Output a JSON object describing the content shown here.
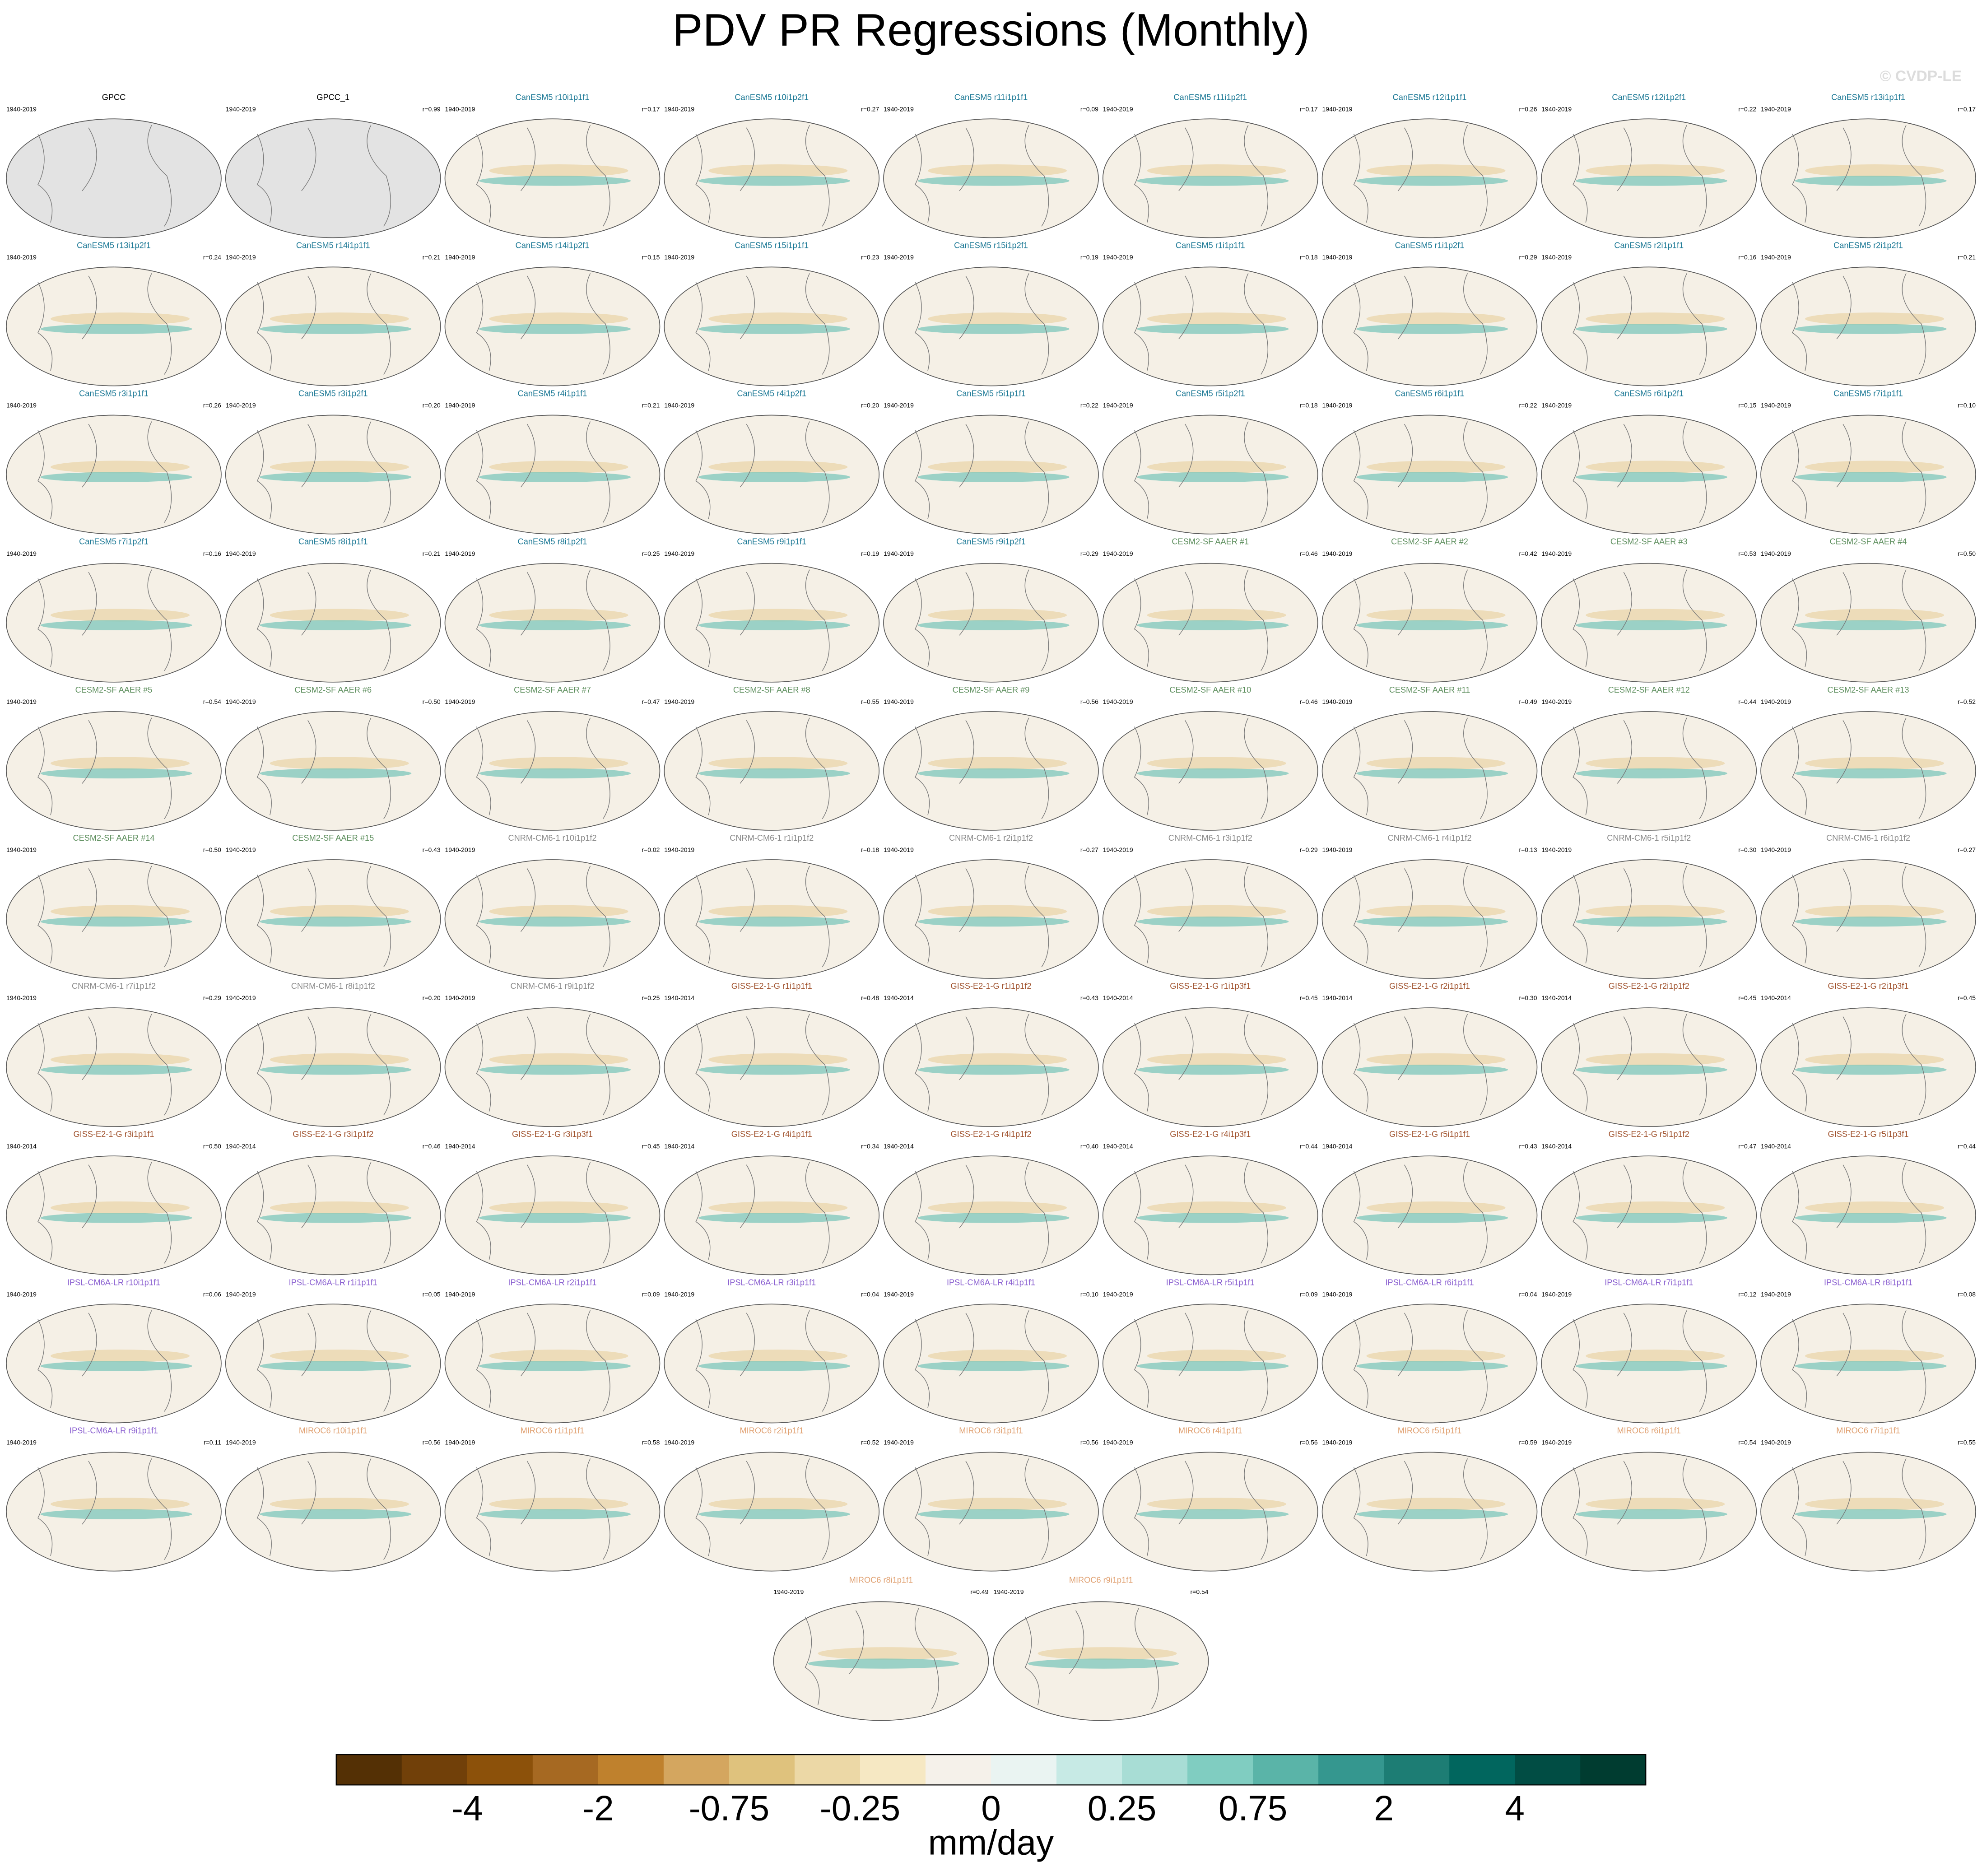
{
  "title": "PDV PR Regressions (Monthly)",
  "watermark": "© CVDP-LE",
  "groups": [
    {
      "color": "#000000",
      "fill": "#e3e3e3",
      "panels": [
        {
          "title": "GPCC",
          "period": "1940-2019"
        },
        {
          "title": "GPCC_1",
          "period": "1940-2019",
          "r": "r=0.99"
        }
      ]
    },
    {
      "color": "#1b7895",
      "fill": "#f5f0e6",
      "panels": [
        {
          "title": "CanESM5 r10i1p1f1",
          "period": "1940-2019",
          "r": "r=0.17"
        },
        {
          "title": "CanESM5 r10i1p2f1",
          "period": "1940-2019",
          "r": "r=0.27"
        },
        {
          "title": "CanESM5 r11i1p1f1",
          "period": "1940-2019",
          "r": "r=0.09"
        },
        {
          "title": "CanESM5 r11i1p2f1",
          "period": "1940-2019",
          "r": "r=0.17"
        },
        {
          "title": "CanESM5 r12i1p1f1",
          "period": "1940-2019",
          "r": "r=0.26"
        },
        {
          "title": "CanESM5 r12i1p2f1",
          "period": "1940-2019",
          "r": "r=0.22"
        },
        {
          "title": "CanESM5 r13i1p1f1",
          "period": "1940-2019",
          "r": "r=0.17"
        },
        {
          "title": "CanESM5 r13i1p2f1",
          "period": "1940-2019",
          "r": "r=0.24"
        },
        {
          "title": "CanESM5 r14i1p1f1",
          "period": "1940-2019",
          "r": "r=0.21"
        },
        {
          "title": "CanESM5 r14i1p2f1",
          "period": "1940-2019",
          "r": "r=0.15"
        },
        {
          "title": "CanESM5 r15i1p1f1",
          "period": "1940-2019",
          "r": "r=0.23"
        },
        {
          "title": "CanESM5 r15i1p2f1",
          "period": "1940-2019",
          "r": "r=0.19"
        },
        {
          "title": "CanESM5 r1i1p1f1",
          "period": "1940-2019",
          "r": "r=0.18"
        },
        {
          "title": "CanESM5 r1i1p2f1",
          "period": "1940-2019",
          "r": "r=0.29"
        },
        {
          "title": "CanESM5 r2i1p1f1",
          "period": "1940-2019",
          "r": "r=0.16"
        },
        {
          "title": "CanESM5 r2i1p2f1",
          "period": "1940-2019",
          "r": "r=0.21"
        },
        {
          "title": "CanESM5 r3i1p1f1",
          "period": "1940-2019",
          "r": "r=0.26"
        },
        {
          "title": "CanESM5 r3i1p2f1",
          "period": "1940-2019",
          "r": "r=0.20"
        },
        {
          "title": "CanESM5 r4i1p1f1",
          "period": "1940-2019",
          "r": "r=0.21"
        },
        {
          "title": "CanESM5 r4i1p2f1",
          "period": "1940-2019",
          "r": "r=0.20"
        },
        {
          "title": "CanESM5 r5i1p1f1",
          "period": "1940-2019",
          "r": "r=0.22"
        },
        {
          "title": "CanESM5 r5i1p2f1",
          "period": "1940-2019",
          "r": "r=0.18"
        },
        {
          "title": "CanESM5 r6i1p1f1",
          "period": "1940-2019",
          "r": "r=0.22"
        },
        {
          "title": "CanESM5 r6i1p2f1",
          "period": "1940-2019",
          "r": "r=0.15"
        },
        {
          "title": "CanESM5 r7i1p1f1",
          "period": "1940-2019",
          "r": "r=0.10"
        },
        {
          "title": "CanESM5 r7i1p2f1",
          "period": "1940-2019",
          "r": "r=0.16"
        },
        {
          "title": "CanESM5 r8i1p1f1",
          "period": "1940-2019",
          "r": "r=0.21"
        },
        {
          "title": "CanESM5 r8i1p2f1",
          "period": "1940-2019",
          "r": "r=0.25"
        },
        {
          "title": "CanESM5 r9i1p1f1",
          "period": "1940-2019",
          "r": "r=0.19"
        },
        {
          "title": "CanESM5 r9i1p2f1",
          "period": "1940-2019",
          "r": "r=0.29"
        }
      ]
    },
    {
      "color": "#5e8f5e",
      "fill": "#f5f0e6",
      "panels": [
        {
          "title": "CESM2-SF AAER #1",
          "period": "1940-2019",
          "r": "r=0.46"
        },
        {
          "title": "CESM2-SF AAER #2",
          "period": "1940-2019",
          "r": "r=0.42"
        },
        {
          "title": "CESM2-SF AAER #3",
          "period": "1940-2019",
          "r": "r=0.53"
        },
        {
          "title": "CESM2-SF AAER #4",
          "period": "1940-2019",
          "r": "r=0.50"
        },
        {
          "title": "CESM2-SF AAER #5",
          "period": "1940-2019",
          "r": "r=0.54"
        },
        {
          "title": "CESM2-SF AAER #6",
          "period": "1940-2019",
          "r": "r=0.50"
        },
        {
          "title": "CESM2-SF AAER #7",
          "period": "1940-2019",
          "r": "r=0.47"
        },
        {
          "title": "CESM2-SF AAER #8",
          "period": "1940-2019",
          "r": "r=0.55"
        },
        {
          "title": "CESM2-SF AAER #9",
          "period": "1940-2019",
          "r": "r=0.56"
        },
        {
          "title": "CESM2-SF AAER #10",
          "period": "1940-2019",
          "r": "r=0.46"
        },
        {
          "title": "CESM2-SF AAER #11",
          "period": "1940-2019",
          "r": "r=0.49"
        },
        {
          "title": "CESM2-SF AAER #12",
          "period": "1940-2019",
          "r": "r=0.44"
        },
        {
          "title": "CESM2-SF AAER #13",
          "period": "1940-2019",
          "r": "r=0.52"
        },
        {
          "title": "CESM2-SF AAER #14",
          "period": "1940-2019",
          "r": "r=0.50"
        },
        {
          "title": "CESM2-SF AAER #15",
          "period": "1940-2019",
          "r": "r=0.43"
        }
      ]
    },
    {
      "color": "#8a8a8a",
      "fill": "#f5f0e6",
      "panels": [
        {
          "title": "CNRM-CM6-1 r10i1p1f2",
          "period": "1940-2019",
          "r": "r=0.02"
        },
        {
          "title": "CNRM-CM6-1 r1i1p1f2",
          "period": "1940-2019",
          "r": "r=0.18"
        },
        {
          "title": "CNRM-CM6-1 r2i1p1f2",
          "period": "1940-2019",
          "r": "r=0.27"
        },
        {
          "title": "CNRM-CM6-1 r3i1p1f2",
          "period": "1940-2019",
          "r": "r=0.29"
        },
        {
          "title": "CNRM-CM6-1 r4i1p1f2",
          "period": "1940-2019",
          "r": "r=0.13"
        },
        {
          "title": "CNRM-CM6-1 r5i1p1f2",
          "period": "1940-2019",
          "r": "r=0.30"
        },
        {
          "title": "CNRM-CM6-1 r6i1p1f2",
          "period": "1940-2019",
          "r": "r=0.27"
        },
        {
          "title": "CNRM-CM6-1 r7i1p1f2",
          "period": "1940-2019",
          "r": "r=0.29"
        },
        {
          "title": "CNRM-CM6-1 r8i1p1f2",
          "period": "1940-2019",
          "r": "r=0.20"
        },
        {
          "title": "CNRM-CM6-1 r9i1p1f2",
          "period": "1940-2019",
          "r": "r=0.25"
        }
      ]
    },
    {
      "color": "#a0522d",
      "fill": "#f5f0e6",
      "panels": [
        {
          "title": "GISS-E2-1-G r1i1p1f1",
          "period": "1940-2014",
          "r": "r=0.48"
        },
        {
          "title": "GISS-E2-1-G r1i1p1f2",
          "period": "1940-2014",
          "r": "r=0.43"
        },
        {
          "title": "GISS-E2-1-G r1i1p3f1",
          "period": "1940-2014",
          "r": "r=0.45"
        },
        {
          "title": "GISS-E2-1-G r2i1p1f1",
          "period": "1940-2014",
          "r": "r=0.30"
        },
        {
          "title": "GISS-E2-1-G r2i1p1f2",
          "period": "1940-2014",
          "r": "r=0.45"
        },
        {
          "title": "GISS-E2-1-G r2i1p3f1",
          "period": "1940-2014",
          "r": "r=0.45"
        },
        {
          "title": "GISS-E2-1-G r3i1p1f1",
          "period": "1940-2014",
          "r": "r=0.50"
        },
        {
          "title": "GISS-E2-1-G r3i1p1f2",
          "period": "1940-2014",
          "r": "r=0.46"
        },
        {
          "title": "GISS-E2-1-G r3i1p3f1",
          "period": "1940-2014",
          "r": "r=0.45"
        },
        {
          "title": "GISS-E2-1-G r4i1p1f1",
          "period": "1940-2014",
          "r": "r=0.34"
        },
        {
          "title": "GISS-E2-1-G r4i1p1f2",
          "period": "1940-2014",
          "r": "r=0.40"
        },
        {
          "title": "GISS-E2-1-G r4i1p3f1",
          "period": "1940-2014",
          "r": "r=0.44"
        },
        {
          "title": "GISS-E2-1-G r5i1p1f1",
          "period": "1940-2014",
          "r": "r=0.43"
        },
        {
          "title": "GISS-E2-1-G r5i1p1f2",
          "period": "1940-2014",
          "r": "r=0.47"
        },
        {
          "title": "GISS-E2-1-G r5i1p3f1",
          "period": "1940-2014",
          "r": "r=0.44"
        }
      ]
    },
    {
      "color": "#8a5fd0",
      "fill": "#f5f0e6",
      "panels": [
        {
          "title": "IPSL-CM6A-LR r10i1p1f1",
          "period": "1940-2019",
          "r": "r=0.06"
        },
        {
          "title": "IPSL-CM6A-LR r1i1p1f1",
          "period": "1940-2019",
          "r": "r=0.05"
        },
        {
          "title": "IPSL-CM6A-LR r2i1p1f1",
          "period": "1940-2019",
          "r": "r=0.09"
        },
        {
          "title": "IPSL-CM6A-LR r3i1p1f1",
          "period": "1940-2019",
          "r": "r=0.04"
        },
        {
          "title": "IPSL-CM6A-LR r4i1p1f1",
          "period": "1940-2019",
          "r": "r=0.10"
        },
        {
          "title": "IPSL-CM6A-LR r5i1p1f1",
          "period": "1940-2019",
          "r": "r=0.09"
        },
        {
          "title": "IPSL-CM6A-LR r6i1p1f1",
          "period": "1940-2019",
          "r": "r=0.04"
        },
        {
          "title": "IPSL-CM6A-LR r7i1p1f1",
          "period": "1940-2019",
          "r": "r=0.12"
        },
        {
          "title": "IPSL-CM6A-LR r8i1p1f1",
          "period": "1940-2019",
          "r": "r=0.08"
        },
        {
          "title": "IPSL-CM6A-LR r9i1p1f1",
          "period": "1940-2019",
          "r": "r=0.11"
        }
      ]
    },
    {
      "color": "#e0a070",
      "fill": "#f5f0e6",
      "panels": [
        {
          "title": "MIROC6 r10i1p1f1",
          "period": "1940-2019",
          "r": "r=0.56"
        },
        {
          "title": "MIROC6 r1i1p1f1",
          "period": "1940-2019",
          "r": "r=0.58"
        },
        {
          "title": "MIROC6 r2i1p1f1",
          "period": "1940-2019",
          "r": "r=0.52"
        },
        {
          "title": "MIROC6 r3i1p1f1",
          "period": "1940-2019",
          "r": "r=0.56"
        },
        {
          "title": "MIROC6 r4i1p1f1",
          "period": "1940-2019",
          "r": "r=0.56"
        },
        {
          "title": "MIROC6 r5i1p1f1",
          "period": "1940-2019",
          "r": "r=0.59"
        },
        {
          "title": "MIROC6 r6i1p1f1",
          "period": "1940-2019",
          "r": "r=0.54"
        },
        {
          "title": "MIROC6 r7i1p1f1",
          "period": "1940-2019",
          "r": "r=0.55"
        },
        {
          "title": "MIROC6 r8i1p1f1",
          "period": "1940-2019",
          "r": "r=0.49"
        },
        {
          "title": "MIROC6 r9i1p1f1",
          "period": "1940-2019",
          "r": "r=0.54"
        }
      ]
    }
  ],
  "colorbar": {
    "label": "mm/day",
    "ticks": [
      -4,
      -2,
      -0.75,
      -0.25,
      0,
      0.25,
      0.75,
      2,
      4
    ],
    "colors": [
      "#543005",
      "#714009",
      "#8c510a",
      "#a66922",
      "#bf812d",
      "#d4a65f",
      "#dfc27d",
      "#ecd8a6",
      "#f6e8c3",
      "#f5f1ea",
      "#eaf4f2",
      "#c7eae5",
      "#a8ddd5",
      "#80cdc1",
      "#5ab4a8",
      "#35978f",
      "#1d7d74",
      "#01665e",
      "#014d44",
      "#003c30"
    ]
  }
}
